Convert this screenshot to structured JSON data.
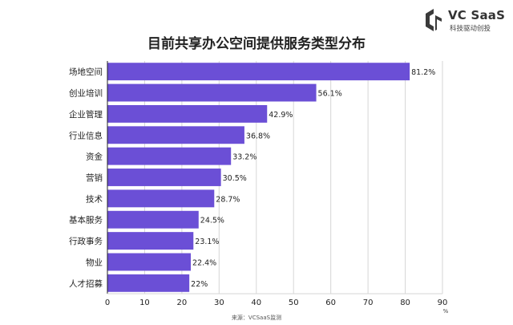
{
  "brand": {
    "name": "VC SaaS",
    "tagline": "科技驱动创投",
    "colors": {
      "mark": "#3a3a3a"
    }
  },
  "chart_data": {
    "type": "bar",
    "orientation": "horizontal",
    "title": "目前共享办公空间提供服务类型分布",
    "categories": [
      "场地空间",
      "创业培训",
      "企业管理",
      "行业信息",
      "资金",
      "营销",
      "技术",
      "基本服务",
      "行政事务",
      "物业",
      "人才招募"
    ],
    "values": [
      81.2,
      56.1,
      42.9,
      36.8,
      33.2,
      30.5,
      28.7,
      24.5,
      23.1,
      22.4,
      22
    ],
    "value_labels": [
      "81.2%",
      "56.1%",
      "42.9%",
      "36.8%",
      "33.2%",
      "30.5%",
      "28.7%",
      "24.5%",
      "23.1%",
      "22.4%",
      "22%"
    ],
    "xlim": [
      0,
      90
    ],
    "xticks": [
      0,
      10,
      20,
      30,
      40,
      50,
      60,
      70,
      80,
      90
    ],
    "xunit": "%",
    "grid": true,
    "bar_color": "#6b4fd6",
    "source": "来源：VCSaaS监测"
  }
}
